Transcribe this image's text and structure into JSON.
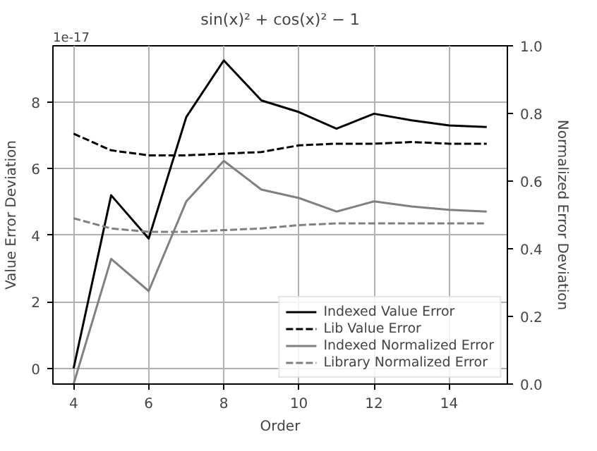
{
  "chart_data": {
    "type": "line",
    "title": "sin(x)² + cos(x)² − 1",
    "xlabel": "Order",
    "ylabel": "Value Error Deviation",
    "y2label": "Normalized Error Deviation",
    "annotations": [
      "1e-17"
    ],
    "x": [
      4,
      5,
      6,
      7,
      8,
      9,
      10,
      11,
      12,
      13,
      14,
      15
    ],
    "series": [
      {
        "name": "Indexed Value Error",
        "color": "#000000",
        "line_style": "solid",
        "values": [
          0,
          5.2,
          3.9,
          7.55,
          9.25,
          8.05,
          7.7,
          7.2,
          7.65,
          7.45,
          7.3,
          7.25
        ]
      },
      {
        "name": "Lib Value Error",
        "color": "#000000",
        "line_style": "dashed",
        "values": [
          7.05,
          6.55,
          6.4,
          6.4,
          6.45,
          6.5,
          6.7,
          6.75,
          6.75,
          6.8,
          6.75,
          6.75
        ]
      },
      {
        "name": "Indexed Normalized Error",
        "color": "#808080",
        "line_style": "solid",
        "axis": "y2",
        "values": [
          0,
          0.37,
          0.275,
          0.54,
          0.66,
          0.575,
          0.55,
          0.51,
          0.54,
          0.525,
          0.515,
          0.51
        ]
      },
      {
        "name": "Library Normalized Error",
        "color": "#808080",
        "line_style": "dashed",
        "axis": "y2",
        "values": [
          0.49,
          0.46,
          0.45,
          0.45,
          0.455,
          0.46,
          0.47,
          0.475,
          0.475,
          0.475,
          0.475,
          0.475
        ]
      }
    ],
    "xlim": [
      3.45,
      15.55
    ],
    "xticks": [
      4,
      6,
      8,
      10,
      12,
      14
    ],
    "ylim": [
      -0.47,
      9.69
    ],
    "yticks": [
      0,
      2,
      4,
      6,
      8
    ],
    "y2lim": [
      0,
      1.0
    ],
    "y2ticks": [
      {
        "value": 0,
        "label": "0.0"
      },
      {
        "value": 0.2,
        "label": "0.2"
      },
      {
        "value": 0.4,
        "label": "0.4"
      },
      {
        "value": 0.6,
        "label": "0.6"
      },
      {
        "value": 0.8,
        "label": "0.8"
      },
      {
        "value": 1.0,
        "label": "1.0"
      }
    ],
    "grid": true,
    "legend": "bottom right",
    "marker": "none"
  }
}
